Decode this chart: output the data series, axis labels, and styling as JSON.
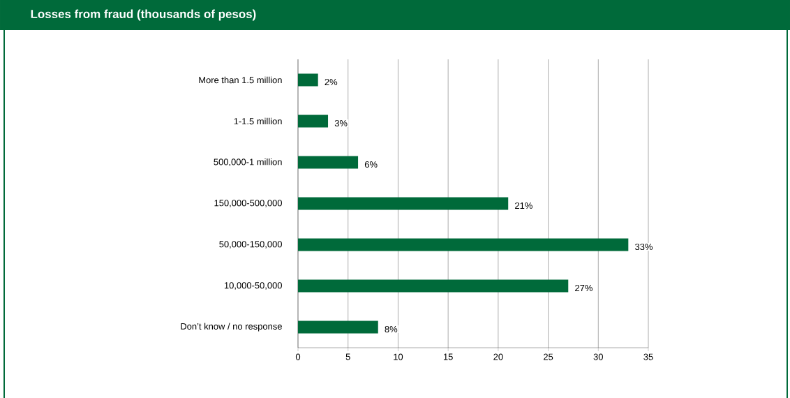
{
  "chart_data": {
    "type": "bar",
    "orientation": "horizontal",
    "title": "Losses from fraud (thousands of pesos)",
    "categories": [
      "More than 1.5 million",
      "1-1.5 million",
      "500,000-1 million",
      "150,000-500,000",
      "50,000-150,000",
      "10,000-50,000",
      "Don’t know / no response"
    ],
    "values": [
      2,
      3,
      6,
      21,
      33,
      27,
      8
    ],
    "value_labels": [
      "2%",
      "3%",
      "6%",
      "21%",
      "33%",
      "27%",
      "8%"
    ],
    "color": "#006a3a",
    "xlim": [
      0,
      35
    ],
    "xticks": [
      0,
      5,
      10,
      15,
      20,
      25,
      30,
      35
    ],
    "grid": "x"
  }
}
